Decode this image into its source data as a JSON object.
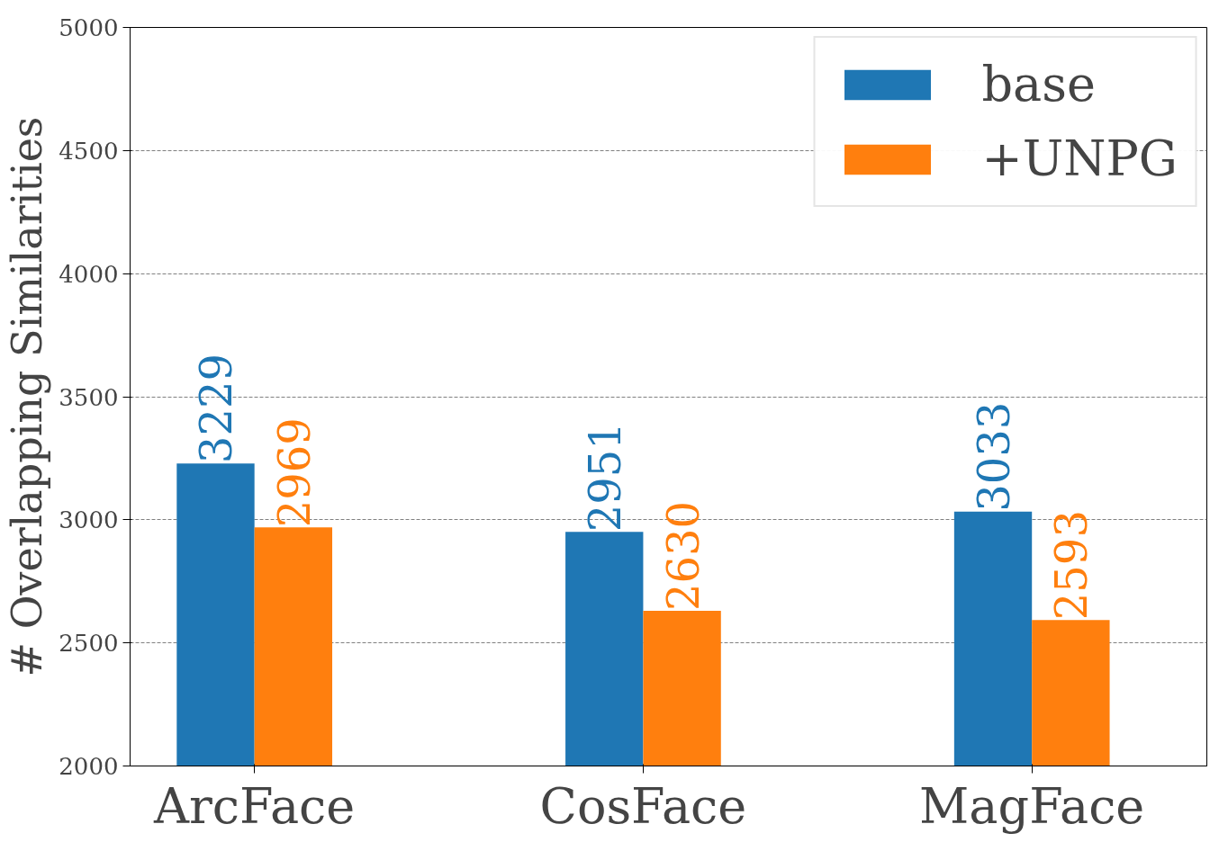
{
  "chart_data": {
    "type": "bar",
    "ylabel": "# Overlapping Similarities",
    "categories": [
      "ArcFace",
      "CosFace",
      "MagFace"
    ],
    "series": [
      {
        "name": "base",
        "color": "#1f77b4",
        "values": [
          3229,
          2951,
          3033
        ]
      },
      {
        "name": "+UNPG",
        "color": "#ff7f0e",
        "values": [
          2969,
          2630,
          2593
        ]
      }
    ],
    "ylim": [
      2000,
      5000
    ],
    "yticks": [
      2000,
      2500,
      3000,
      3500,
      4000,
      4500,
      5000
    ],
    "grid": "y",
    "legend": "top right",
    "data_labels": true
  }
}
